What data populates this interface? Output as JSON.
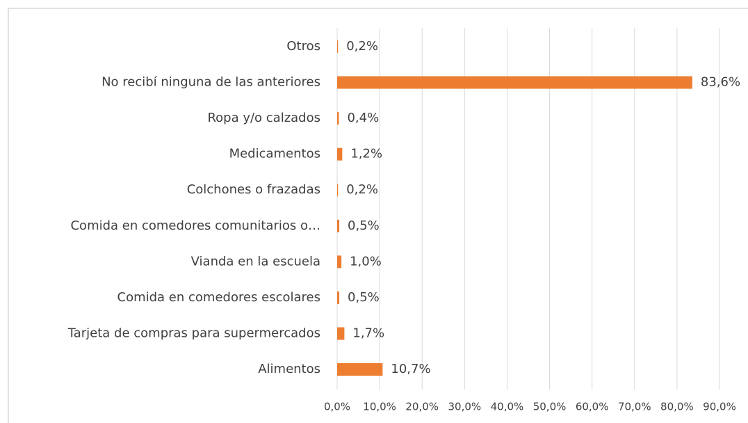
{
  "chart_data": {
    "type": "hbar",
    "categories": [
      "Otros",
      "No recibí ninguna de las anteriores",
      "Ropa y/o calzados",
      "Medicamentos",
      "Colchones o frazadas",
      "Comida en comedores comunitarios o…",
      "Vianda en la escuela",
      "Comida en comedores escolares",
      "Tarjeta de compras para supermercados",
      "Alimentos"
    ],
    "values": [
      0.2,
      83.6,
      0.4,
      1.2,
      0.2,
      0.5,
      1.0,
      0.5,
      1.7,
      10.7
    ],
    "value_labels": [
      "0,2%",
      "83,6%",
      "0,4%",
      "1,2%",
      "0,2%",
      "0,5%",
      "1,0%",
      "0,5%",
      "1,7%",
      "10,7%"
    ],
    "color": "#ed7d31",
    "xlim": [
      0,
      90
    ],
    "xticks": [
      {
        "value": 0,
        "label": "0,0%"
      },
      {
        "value": 10,
        "label": "10,0%"
      },
      {
        "value": 20,
        "label": "20,0%"
      },
      {
        "value": 30,
        "label": "30,0%"
      },
      {
        "value": 40,
        "label": "40,0%"
      },
      {
        "value": 50,
        "label": "50,0%"
      },
      {
        "value": 60,
        "label": "60,0%"
      },
      {
        "value": 70,
        "label": "70,0%"
      },
      {
        "value": 80,
        "label": "80,0%"
      },
      {
        "value": 90,
        "label": "90,0%"
      }
    ],
    "grid": true
  }
}
